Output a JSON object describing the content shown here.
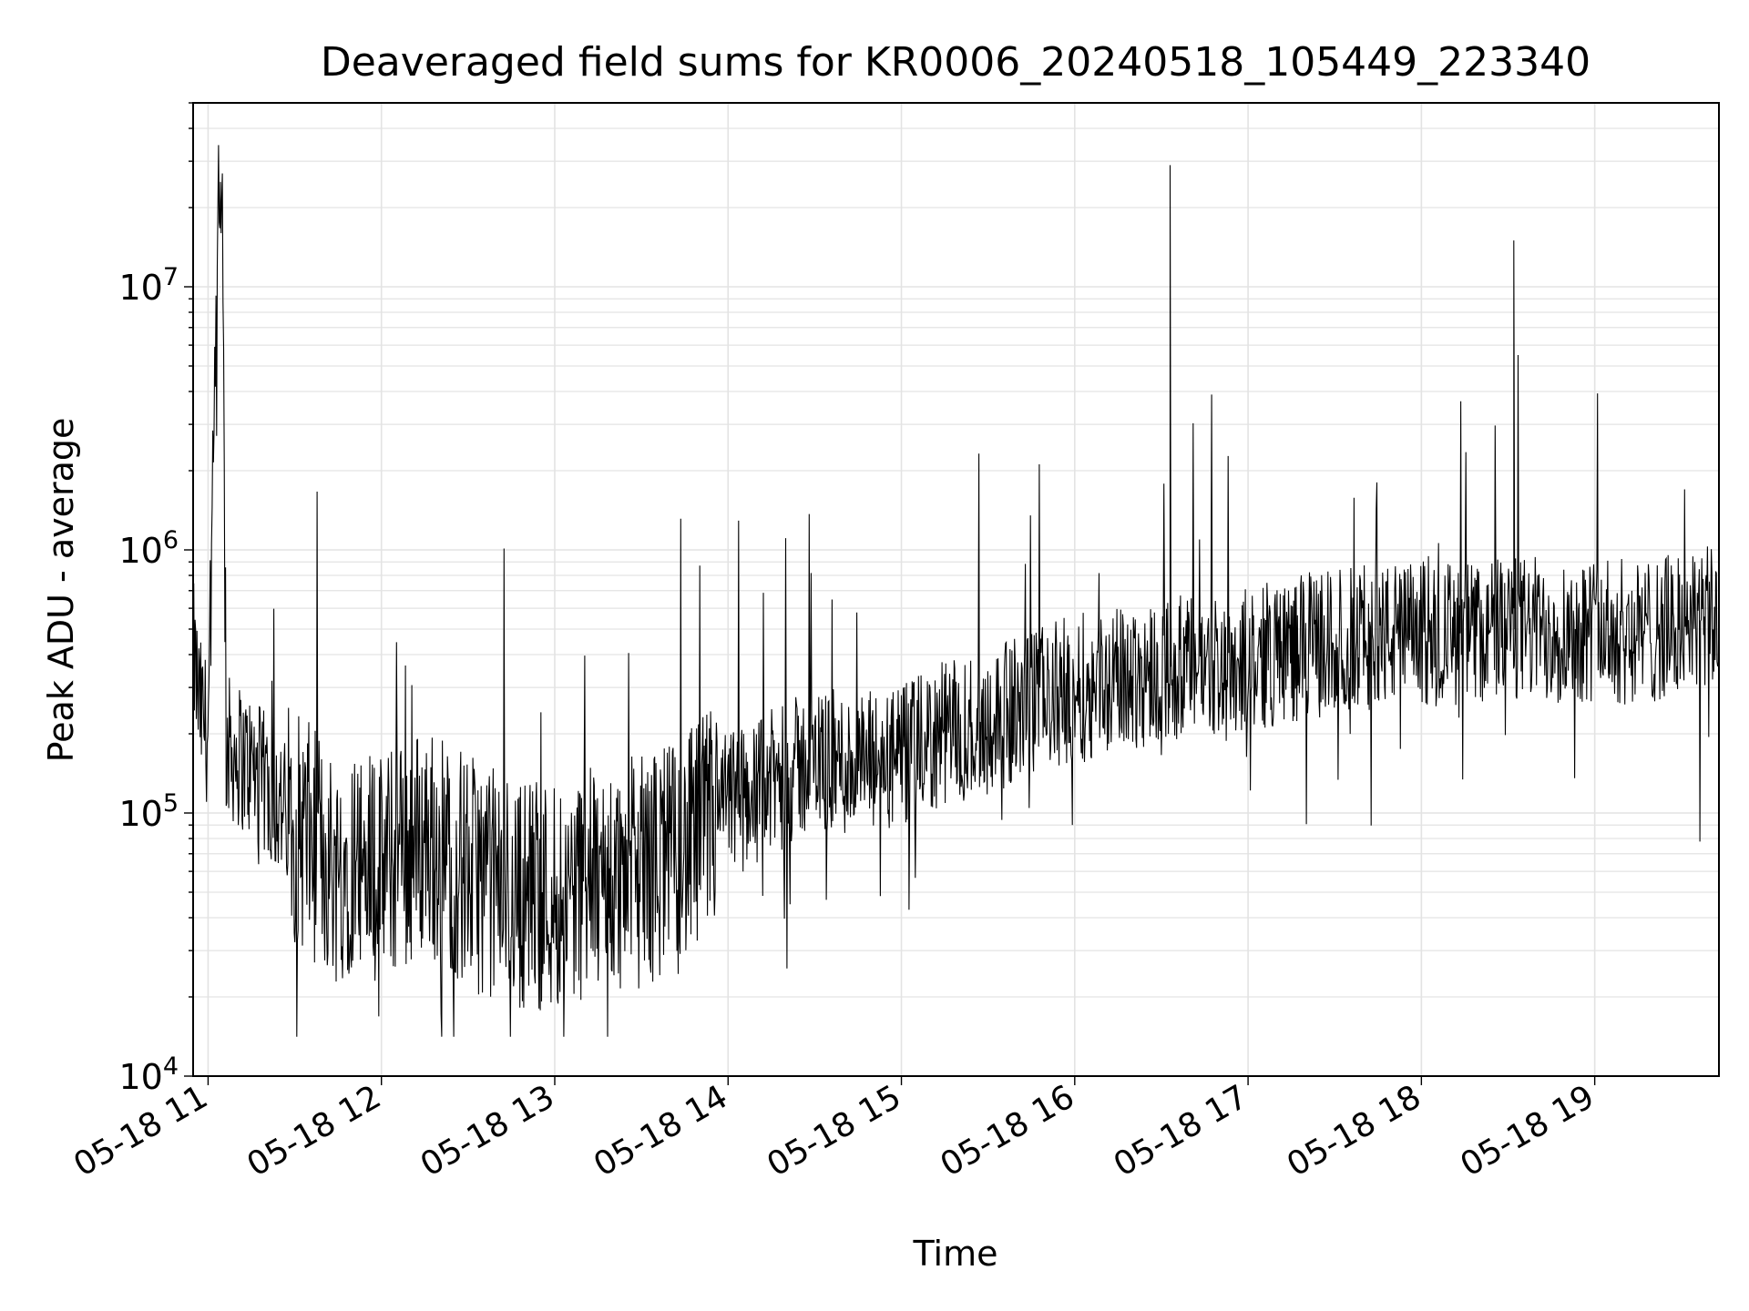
{
  "chart_data": {
    "type": "line",
    "title": "Deaveraged field sums for KR0006_20240518_105449_223340",
    "xlabel": "Time",
    "ylabel": "Peak ADU - average",
    "yscale": "log",
    "ylim": [
      10000,
      50000000
    ],
    "xlim": [
      "2024-05-18 10:54:49",
      "2024-05-18 19:43:00"
    ],
    "x_ticks": [
      {
        "value": "2024-05-18 11:00",
        "label": "05-18 11"
      },
      {
        "value": "2024-05-18 12:00",
        "label": "05-18 12"
      },
      {
        "value": "2024-05-18 13:00",
        "label": "05-18 13"
      },
      {
        "value": "2024-05-18 14:00",
        "label": "05-18 14"
      },
      {
        "value": "2024-05-18 15:00",
        "label": "05-18 15"
      },
      {
        "value": "2024-05-18 16:00",
        "label": "05-18 16"
      },
      {
        "value": "2024-05-18 17:00",
        "label": "05-18 17"
      },
      {
        "value": "2024-05-18 18:00",
        "label": "05-18 18"
      },
      {
        "value": "2024-05-18 19:00",
        "label": "05-18 19"
      }
    ],
    "y_ticks": [
      {
        "value": 10000,
        "base": "10",
        "exp": "4"
      },
      {
        "value": 100000,
        "base": "10",
        "exp": "5"
      },
      {
        "value": 1000000,
        "base": "10",
        "exp": "6"
      },
      {
        "value": 10000000,
        "base": "10",
        "exp": "7"
      }
    ],
    "grid": true,
    "line_color": "#000000",
    "series": [
      {
        "x": [
          "2024-05-18 10:54",
          "2024-05-18 10:57",
          "2024-05-18 11:00",
          "2024-05-18 11:03",
          "2024-05-18 11:05",
          "2024-05-18 11:06",
          "2024-05-18 11:15",
          "2024-05-18 11:30",
          "2024-05-18 11:45",
          "2024-05-18 11:50",
          "2024-05-18 12:00",
          "2024-05-18 12:15",
          "2024-05-18 12:30",
          "2024-05-18 12:45",
          "2024-05-18 13:00",
          "2024-05-18 13:15",
          "2024-05-18 13:30",
          "2024-05-18 13:45",
          "2024-05-18 14:00",
          "2024-05-18 14:15",
          "2024-05-18 14:30",
          "2024-05-18 14:45",
          "2024-05-18 15:00",
          "2024-05-18 15:15",
          "2024-05-18 15:30",
          "2024-05-18 15:45",
          "2024-05-18 16:00",
          "2024-05-18 16:15",
          "2024-05-18 16:30",
          "2024-05-18 16:33",
          "2024-05-18 16:45",
          "2024-05-18 17:00",
          "2024-05-18 17:15",
          "2024-05-18 17:30",
          "2024-05-18 17:45",
          "2024-05-18 18:00",
          "2024-05-18 18:15",
          "2024-05-18 18:30",
          "2024-05-18 18:32",
          "2024-05-18 18:45",
          "2024-05-18 19:00",
          "2024-05-18 19:15",
          "2024-05-18 19:30",
          "2024-05-18 19:43"
        ],
        "y": [
          500000,
          250000,
          200000,
          8000000,
          33000000,
          180000,
          150000,
          90000,
          60000,
          70000,
          60000,
          80000,
          60000,
          50000,
          50000,
          55000,
          60000,
          70000,
          110000,
          130000,
          160000,
          150000,
          160000,
          200000,
          220000,
          260000,
          300000,
          320000,
          350000,
          29000000,
          360000,
          380000,
          420000,
          450000,
          470000,
          480000,
          480000,
          500000,
          15000000,
          500000,
          500000,
          480000,
          520000,
          550000
        ]
      }
    ]
  }
}
